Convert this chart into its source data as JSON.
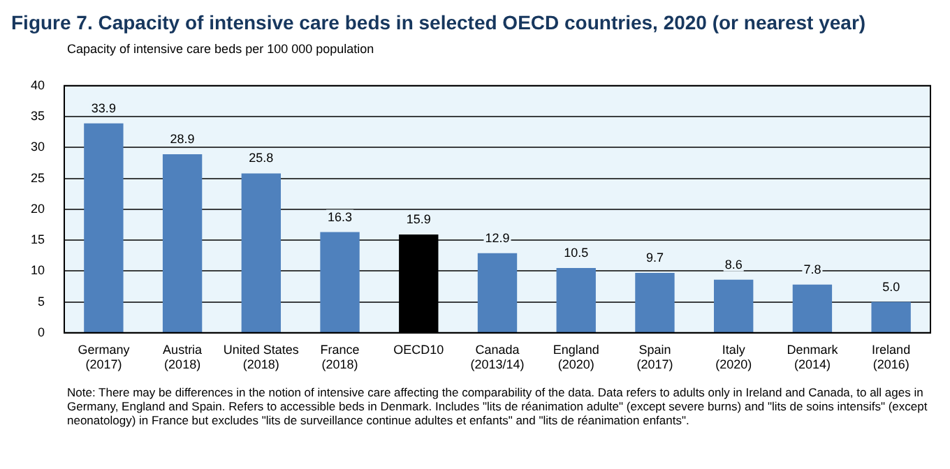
{
  "chart_data": {
    "type": "bar",
    "title": "Figure 7. Capacity of intensive care beds in selected OECD countries, 2020 (or nearest year)",
    "ylabel": "Capacity of intensive care beds per 100 000 population",
    "categories": [
      "Germany (2017)",
      "Austria (2018)",
      "United States (2018)",
      "France (2018)",
      "OECD10",
      "Canada (2013/14)",
      "England (2020)",
      "Spain (2017)",
      "Italy (2020)",
      "Denmark (2014)",
      "Ireland (2016)"
    ],
    "values": [
      33.9,
      28.9,
      25.8,
      16.3,
      15.9,
      12.9,
      10.5,
      9.7,
      8.6,
      7.8,
      5.0
    ],
    "colors": [
      "#4f81bd",
      "#4f81bd",
      "#4f81bd",
      "#4f81bd",
      "#000000",
      "#4f81bd",
      "#4f81bd",
      "#4f81bd",
      "#4f81bd",
      "#4f81bd",
      "#4f81bd"
    ],
    "value_labels": [
      "33.9",
      "28.9",
      "25.8",
      "16.3",
      "15.9",
      "12.9",
      "10.5",
      "9.7",
      "8.6",
      "7.8",
      "5.0"
    ],
    "ylim": [
      0,
      40
    ],
    "yticks": [
      0,
      5,
      10,
      15,
      20,
      25,
      30,
      35,
      40
    ],
    "grid": "y",
    "annotations": [
      "Note: There may be differences in the notion of intensive care affecting the comparability of the data. Data refers to adults only in Ireland and Canada, to all ages in Germany, England and Spain. Refers to accessible beds in Denmark. Includes \"lits de réanimation adulte\" (except severe burns) and \"lits de soins intensifs\" (except neonatology) in France but excludes \"lits de surveillance continue adultes et enfants\" and \"lits de réanimation enfants\"."
    ]
  }
}
